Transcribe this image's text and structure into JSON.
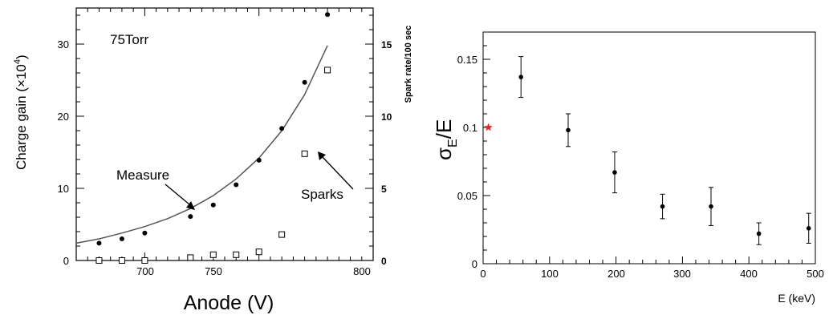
{
  "chart_data": [
    {
      "type": "scatter",
      "ylabel": "Charge gain (×10",
      "ylabel_exp": "4",
      "ylabel_close": ")",
      "xlabel": "Anode (V)",
      "y2label": "Spark rate/100 sec",
      "xlim": [
        670,
        800
      ],
      "ylim": [
        0,
        35
      ],
      "y2lim": [
        0,
        17.5
      ],
      "x_ticks": [
        "700",
        "750",
        "800"
      ],
      "y_ticks": [
        "0",
        "10",
        "20",
        "30"
      ],
      "y2_ticks": [
        "0",
        "5",
        "10",
        "15"
      ],
      "annotations": {
        "pressure": "75Torr",
        "measure": "Measure",
        "sparks": "Sparks"
      },
      "series": [
        {
          "marker": "filled-circle",
          "axis": "left",
          "x": [
            680,
            690,
            700,
            720,
            730,
            740,
            750,
            760,
            770,
            780
          ],
          "y": [
            2.4,
            3.0,
            3.8,
            6.1,
            7.7,
            10.5,
            13.9,
            18.3,
            24.7,
            34.1
          ]
        },
        {
          "marker": "open-square",
          "axis": "right",
          "x": [
            680,
            690,
            700,
            720,
            730,
            740,
            750,
            760,
            770,
            780
          ],
          "y": [
            0,
            0,
            0,
            0.2,
            0.4,
            0.4,
            0.6,
            1.8,
            7.4,
            13.2
          ]
        },
        {
          "type": "line",
          "axis": "left",
          "x": [
            670,
            680,
            690,
            700,
            710,
            720,
            730,
            740,
            750,
            760,
            770,
            780
          ],
          "y": [
            2.4,
            3.0,
            3.8,
            4.7,
            5.8,
            7.2,
            9.0,
            11.3,
            14.2,
            18.0,
            23.0,
            29.8
          ]
        }
      ]
    },
    {
      "type": "scatter",
      "ylabel": "σ",
      "ylabel_sub": "E",
      "ylabel_tail": "/E",
      "xlabel": "E (keV)",
      "xlim": [
        0,
        500
      ],
      "ylim": [
        0,
        0.17
      ],
      "x_ticks": [
        "0",
        "100",
        "200",
        "300",
        "400",
        "500"
      ],
      "y_ticks": [
        "0",
        "0.05",
        "0.1",
        "0.15"
      ],
      "marker_color": "#e8242a",
      "series": [
        {
          "marker": "dot-with-errorbar",
          "x": [
            57,
            128,
            198,
            270,
            343,
            415,
            490
          ],
          "y": [
            0.137,
            0.098,
            0.067,
            0.042,
            0.042,
            0.022,
            0.026
          ],
          "yerr": [
            0.015,
            0.012,
            0.015,
            0.009,
            0.014,
            0.008,
            0.011
          ]
        },
        {
          "marker": "red-star",
          "x": [
            8
          ],
          "y": [
            0.1
          ]
        }
      ]
    }
  ]
}
